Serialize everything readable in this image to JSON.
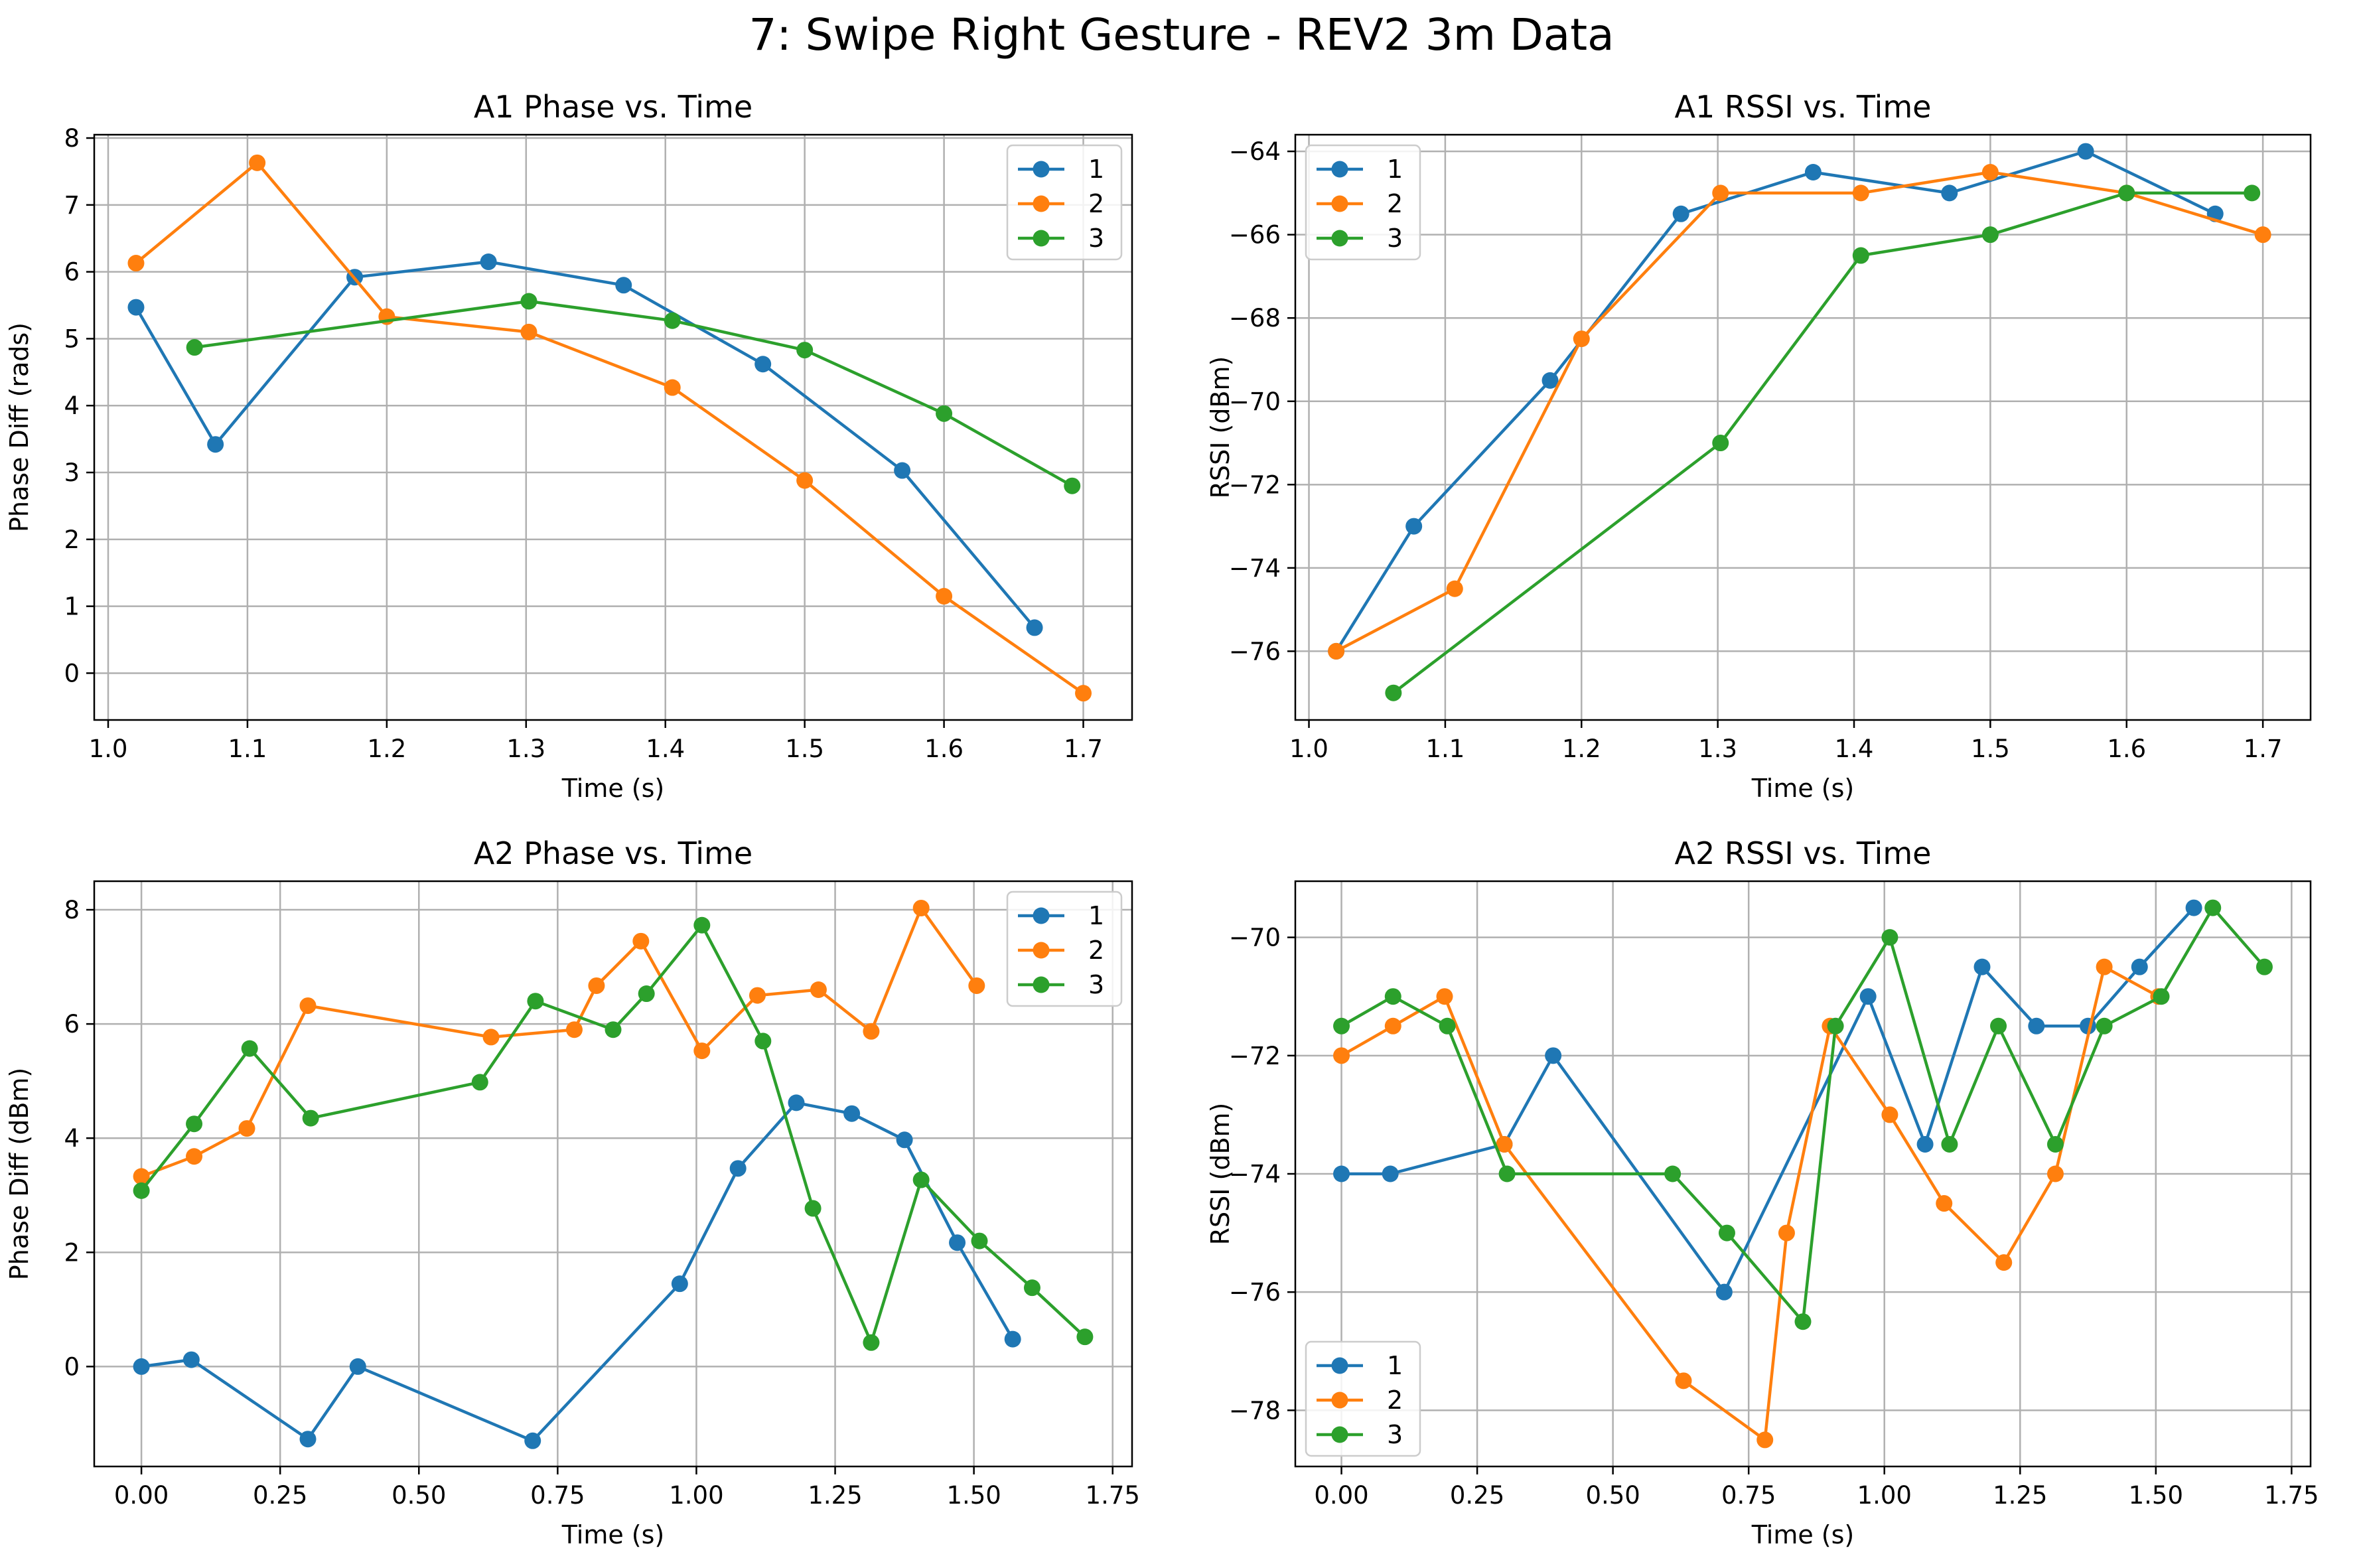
{
  "figure": {
    "title": "7: Swipe Right Gesture - REV2 3m Data"
  },
  "colors": {
    "1": "#1f77b4",
    "2": "#ff7f0e",
    "3": "#2ca02c",
    "grid": "#b0b0b0"
  },
  "chart_data": [
    {
      "type": "line",
      "title": "A1 Phase vs. Time",
      "xlabel": "Time (s)",
      "ylabel": "Phase Diff (rads)",
      "xlim": [
        0.99,
        1.735
      ],
      "ylim": [
        -0.7,
        8.05
      ],
      "xticks": [
        1.0,
        1.1,
        1.2,
        1.3,
        1.4,
        1.5,
        1.6,
        1.7
      ],
      "xtick_labels": [
        "1.0",
        "1.1",
        "1.2",
        "1.3",
        "1.4",
        "1.5",
        "1.6",
        "1.7"
      ],
      "yticks": [
        0,
        1,
        2,
        3,
        4,
        5,
        6,
        7,
        8
      ],
      "ytick_labels": [
        "0",
        "1",
        "2",
        "3",
        "4",
        "5",
        "6",
        "7",
        "8"
      ],
      "grid": true,
      "legend": "upper right",
      "series": [
        {
          "name": "1",
          "x": [
            1.02,
            1.077,
            1.177,
            1.273,
            1.37,
            1.47,
            1.57,
            1.665
          ],
          "y": [
            5.47,
            3.42,
            5.92,
            6.15,
            5.8,
            4.62,
            3.03,
            0.68
          ]
        },
        {
          "name": "2",
          "x": [
            1.02,
            1.107,
            1.2,
            1.302,
            1.405,
            1.5,
            1.6,
            1.7
          ],
          "y": [
            6.13,
            7.63,
            5.33,
            5.1,
            4.27,
            2.88,
            1.15,
            -0.3
          ]
        },
        {
          "name": "3",
          "x": [
            1.062,
            1.302,
            1.405,
            1.5,
            1.6,
            1.692
          ],
          "y": [
            4.87,
            5.56,
            5.27,
            4.83,
            3.88,
            2.8
          ]
        }
      ]
    },
    {
      "type": "line",
      "title": "A1 RSSI vs. Time",
      "xlabel": "Time (s)",
      "ylabel": "RSSI (dBm)",
      "xlim": [
        0.99,
        1.735
      ],
      "ylim": [
        -77.65,
        -63.6
      ],
      "xticks": [
        1.0,
        1.1,
        1.2,
        1.3,
        1.4,
        1.5,
        1.6,
        1.7
      ],
      "xtick_labels": [
        "1.0",
        "1.1",
        "1.2",
        "1.3",
        "1.4",
        "1.5",
        "1.6",
        "1.7"
      ],
      "yticks": [
        -76,
        -74,
        -72,
        -70,
        -68,
        -66,
        -64
      ],
      "ytick_labels": [
        "−76",
        "−74",
        "−72",
        "−70",
        "−68",
        "−66",
        "−64"
      ],
      "grid": true,
      "legend": "upper left",
      "series": [
        {
          "name": "1",
          "x": [
            1.02,
            1.077,
            1.177,
            1.273,
            1.37,
            1.47,
            1.57,
            1.665
          ],
          "y": [
            -76,
            -73,
            -69.5,
            -65.5,
            -64.5,
            -65,
            -64,
            -65.5
          ]
        },
        {
          "name": "2",
          "x": [
            1.02,
            1.107,
            1.2,
            1.302,
            1.405,
            1.5,
            1.6,
            1.7
          ],
          "y": [
            -76,
            -74.5,
            -68.5,
            -65,
            -65,
            -64.5,
            -65,
            -66
          ]
        },
        {
          "name": "3",
          "x": [
            1.062,
            1.302,
            1.405,
            1.5,
            1.6,
            1.692
          ],
          "y": [
            -77,
            -71,
            -66.5,
            -66,
            -65,
            -65
          ]
        }
      ]
    },
    {
      "type": "line",
      "title": "A2 Phase vs. Time",
      "xlabel": "Time (s)",
      "ylabel": "Phase Diff (dBm)",
      "xlim": [
        -0.085,
        1.785
      ],
      "ylim": [
        -1.75,
        8.5
      ],
      "xticks": [
        0.0,
        0.25,
        0.5,
        0.75,
        1.0,
        1.25,
        1.5,
        1.75
      ],
      "xtick_labels": [
        "0.00",
        "0.25",
        "0.50",
        "0.75",
        "1.00",
        "1.25",
        "1.50",
        "1.75"
      ],
      "yticks": [
        0,
        2,
        4,
        6,
        8
      ],
      "ytick_labels": [
        "0",
        "2",
        "4",
        "6",
        "8"
      ],
      "grid": true,
      "legend": "upper right",
      "series": [
        {
          "name": "1",
          "x": [
            0.0,
            0.09,
            0.3,
            0.39,
            0.705,
            0.97,
            1.075,
            1.18,
            1.28,
            1.375,
            1.47,
            1.57
          ],
          "y": [
            0.0,
            0.12,
            -1.27,
            0.0,
            -1.3,
            1.45,
            3.47,
            4.62,
            4.43,
            3.97,
            2.17,
            0.48
          ]
        },
        {
          "name": "2",
          "x": [
            0.0,
            0.095,
            0.19,
            0.3,
            0.63,
            0.78,
            0.82,
            0.9,
            1.01,
            1.11,
            1.22,
            1.315,
            1.405,
            1.505
          ],
          "y": [
            3.33,
            3.68,
            4.17,
            6.32,
            5.77,
            5.9,
            6.67,
            7.45,
            5.53,
            6.5,
            6.6,
            5.87,
            8.03,
            6.67
          ]
        },
        {
          "name": "3",
          "x": [
            0.0,
            0.095,
            0.195,
            0.305,
            0.61,
            0.71,
            0.85,
            0.91,
            1.01,
            1.12,
            1.21,
            1.315,
            1.405,
            1.51,
            1.605,
            1.7
          ],
          "y": [
            3.08,
            4.25,
            5.57,
            4.35,
            4.98,
            6.4,
            5.9,
            6.53,
            7.73,
            5.7,
            2.77,
            0.42,
            3.27,
            2.2,
            1.38,
            0.52
          ]
        }
      ]
    },
    {
      "type": "line",
      "title": "A2 RSSI vs. Time",
      "xlabel": "Time (s)",
      "ylabel": "RSSI (dBm)",
      "xlim": [
        -0.085,
        1.785
      ],
      "ylim": [
        -78.95,
        -69.05
      ],
      "xticks": [
        0.0,
        0.25,
        0.5,
        0.75,
        1.0,
        1.25,
        1.5,
        1.75
      ],
      "xtick_labels": [
        "0.00",
        "0.25",
        "0.50",
        "0.75",
        "1.00",
        "1.25",
        "1.50",
        "1.75"
      ],
      "yticks": [
        -78,
        -76,
        -74,
        -72,
        -70
      ],
      "ytick_labels": [
        "−78",
        "−76",
        "−74",
        "−72",
        "−70"
      ],
      "grid": true,
      "legend": "lower left",
      "series": [
        {
          "name": "1",
          "x": [
            0.0,
            0.09,
            0.3,
            0.39,
            0.705,
            0.97,
            1.075,
            1.18,
            1.28,
            1.375,
            1.47,
            1.57
          ],
          "y": [
            -74,
            -74,
            -73.5,
            -72,
            -76,
            -71,
            -73.5,
            -70.5,
            -71.5,
            -71.5,
            -70.5,
            -69.5
          ]
        },
        {
          "name": "2",
          "x": [
            0.0,
            0.095,
            0.19,
            0.3,
            0.63,
            0.78,
            0.82,
            0.9,
            1.01,
            1.11,
            1.22,
            1.315,
            1.405,
            1.505
          ],
          "y": [
            -72,
            -71.5,
            -71,
            -73.5,
            -77.5,
            -78.5,
            -75,
            -71.5,
            -73,
            -74.5,
            -75.5,
            -74,
            -70.5,
            -71
          ]
        },
        {
          "name": "3",
          "x": [
            0.0,
            0.095,
            0.195,
            0.305,
            0.61,
            0.71,
            0.85,
            0.91,
            1.01,
            1.12,
            1.21,
            1.315,
            1.405,
            1.51,
            1.605,
            1.7
          ],
          "y": [
            -71.5,
            -71,
            -71.5,
            -74,
            -74,
            -75,
            -76.5,
            -71.5,
            -70,
            -73.5,
            -71.5,
            -73.5,
            -71.5,
            -71,
            -69.5,
            -70.5
          ]
        }
      ]
    }
  ]
}
